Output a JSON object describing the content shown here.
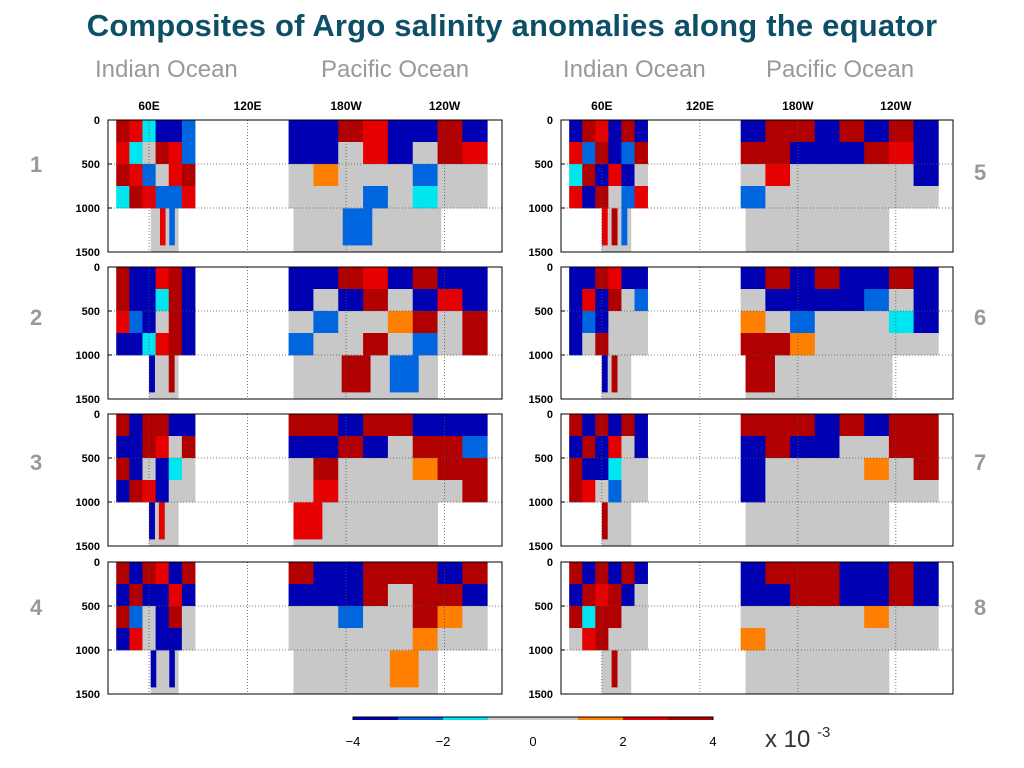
{
  "title": "Composites of Argo salinity anomalies along the equator",
  "ocean_labels": [
    "Indian Ocean",
    "Pacific Ocean",
    "Indian Ocean",
    "Pacific Ocean"
  ],
  "colorbar": {
    "ticks": [
      "−4",
      "−2",
      "0",
      "2",
      "4"
    ],
    "tick_values": [
      -4,
      -2,
      0,
      2,
      4
    ],
    "unit_base": "x 10",
    "unit_exp": "-3",
    "bins": [
      {
        "lo": -4,
        "hi": -3,
        "color": "#0000b3"
      },
      {
        "lo": -3,
        "hi": -2,
        "color": "#0066e0"
      },
      {
        "lo": -2,
        "hi": -1,
        "color": "#00e6f0"
      },
      {
        "lo": -1,
        "hi": 1,
        "color": "#c8c8c8"
      },
      {
        "lo": 1,
        "hi": 2,
        "color": "#ff8000"
      },
      {
        "lo": 2,
        "hi": 3,
        "color": "#e60000"
      },
      {
        "lo": 3,
        "hi": 4,
        "color": "#b00000"
      }
    ]
  },
  "chart_data": {
    "type": "heatmap",
    "x_ticks": [
      "60E",
      "120E",
      "180W",
      "120W"
    ],
    "x_tick_values": [
      60,
      120,
      180,
      240
    ],
    "xlim": [
      35,
      275
    ],
    "y_ticks": [
      "0",
      "500",
      "1000",
      "1500"
    ],
    "y_tick_values": [
      0,
      500,
      1000,
      1500
    ],
    "ylim": [
      0,
      1500
    ],
    "panels": [
      {
        "number": "1",
        "segments": [
          {
            "lon": [
              40,
              88
            ],
            "depth": 1000,
            "deep": {
              "lon": [
                61,
                78
              ],
              "depth": 1500
            },
            "pattern": [
              [
                4,
                3,
                -1,
                -3,
                -4,
                -2
              ],
              [
                3,
                -1,
                0,
                4,
                3,
                -2
              ],
              [
                4,
                3,
                -2,
                0,
                3,
                4
              ],
              [
                -1,
                4,
                3,
                -2,
                -2,
                3
              ]
            ]
          },
          {
            "lon": [
              145,
              266
            ],
            "depth": 1000,
            "deep": {
              "lon": [
                148,
                238
              ],
              "depth": 1500
            },
            "pattern": [
              [
                -4,
                -3,
                4,
                3,
                -4,
                -3,
                4,
                -4
              ],
              [
                -3,
                -4,
                0,
                3,
                -4,
                0,
                4,
                3
              ],
              [
                0,
                2,
                0,
                0,
                0,
                -2,
                0,
                0
              ],
              [
                0,
                0,
                0,
                -2,
                0,
                -1,
                0,
                0
              ]
            ]
          }
        ]
      },
      {
        "number": "2",
        "segments": [
          {
            "lon": [
              40,
              88
            ],
            "depth": 1000,
            "deep": {
              "lon": [
                60,
                78
              ],
              "depth": 1500
            },
            "pattern": [
              [
                4,
                -4,
                -4,
                3,
                4,
                -3
              ],
              [
                4,
                -3,
                -4,
                -1,
                4,
                -4
              ],
              [
                3,
                -2,
                -3,
                0,
                4,
                -3
              ],
              [
                -3,
                -4,
                -1,
                3,
                4,
                -4
              ]
            ]
          },
          {
            "lon": [
              145,
              266
            ],
            "depth": 1000,
            "deep": {
              "lon": [
                148,
                236
              ],
              "depth": 1500
            },
            "pattern": [
              [
                -4,
                -4,
                4,
                3,
                -4,
                4,
                -4,
                -3
              ],
              [
                -3,
                0,
                -4,
                4,
                0,
                -3,
                3,
                -4
              ],
              [
                0,
                -2,
                0,
                0,
                2,
                4,
                0,
                4
              ],
              [
                -2,
                0,
                0,
                4,
                0,
                -2,
                0,
                4
              ]
            ]
          }
        ]
      },
      {
        "number": "3",
        "segments": [
          {
            "lon": [
              40,
              88
            ],
            "depth": 1000,
            "deep": {
              "lon": [
                60,
                78
              ],
              "depth": 1500
            },
            "pattern": [
              [
                4,
                -3,
                4,
                4,
                -4,
                -3
              ],
              [
                -4,
                -4,
                4,
                3,
                0,
                4
              ],
              [
                4,
                -3,
                0,
                -4,
                -1,
                0
              ],
              [
                -3,
                4,
                3,
                -4,
                0,
                0
              ]
            ]
          },
          {
            "lon": [
              145,
              266
            ],
            "depth": 1000,
            "deep": {
              "lon": [
                148,
                236
              ],
              "depth": 1500
            },
            "pattern": [
              [
                4,
                4,
                -4,
                4,
                4,
                -4,
                -3,
                -4
              ],
              [
                -4,
                -3,
                4,
                -4,
                0,
                4,
                4,
                -2
              ],
              [
                0,
                4,
                0,
                0,
                0,
                2,
                4,
                4
              ],
              [
                0,
                3,
                0,
                0,
                0,
                0,
                0,
                4
              ]
            ]
          }
        ]
      },
      {
        "number": "4",
        "segments": [
          {
            "lon": [
              40,
              88
            ],
            "depth": 1000,
            "deep": {
              "lon": [
                61,
                78
              ],
              "depth": 1500
            },
            "pattern": [
              [
                4,
                -3,
                4,
                3,
                -4,
                4
              ],
              [
                -4,
                4,
                -3,
                -4,
                3,
                -3
              ],
              [
                4,
                -2,
                0,
                -4,
                4,
                0
              ],
              [
                -3,
                3,
                0,
                -3,
                -4,
                0
              ]
            ]
          },
          {
            "lon": [
              145,
              266
            ],
            "depth": 1000,
            "deep": {
              "lon": [
                148,
                236
              ],
              "depth": 1500
            },
            "pattern": [
              [
                4,
                -4,
                -3,
                4,
                4,
                4,
                -3,
                4
              ],
              [
                -4,
                -4,
                -3,
                4,
                0,
                4,
                4,
                -4
              ],
              [
                0,
                0,
                -2,
                0,
                0,
                4,
                2,
                0
              ],
              [
                0,
                0,
                0,
                0,
                0,
                2,
                0,
                0
              ]
            ]
          }
        ]
      },
      {
        "number": "5",
        "segments": [
          {
            "lon": [
              40,
              88
            ],
            "depth": 1000,
            "deep": {
              "lon": [
                60,
                78
              ],
              "depth": 1500
            },
            "pattern": [
              [
                -4,
                4,
                3,
                -3,
                4,
                -4
              ],
              [
                3,
                -2,
                4,
                -4,
                -2,
                4
              ],
              [
                -1,
                4,
                -4,
                3,
                -3,
                0
              ],
              [
                3,
                -4,
                4,
                0,
                -2,
                3
              ]
            ]
          },
          {
            "lon": [
              145,
              266
            ],
            "depth": 1000,
            "deep": {
              "lon": [
                148,
                236
              ],
              "depth": 1500
            },
            "pattern": [
              [
                -4,
                4,
                4,
                -4,
                4,
                -3,
                4,
                -4
              ],
              [
                4,
                4,
                -4,
                -3,
                -4,
                4,
                3,
                -4
              ],
              [
                0,
                3,
                0,
                0,
                0,
                0,
                0,
                -4
              ],
              [
                -2,
                0,
                0,
                0,
                0,
                0,
                0,
                0
              ]
            ]
          }
        ]
      },
      {
        "number": "6",
        "segments": [
          {
            "lon": [
              40,
              88
            ],
            "depth": 1000,
            "deep": {
              "lon": [
                60,
                78
              ],
              "depth": 1500
            },
            "pattern": [
              [
                -4,
                -4,
                4,
                3,
                -4,
                -3
              ],
              [
                -4,
                3,
                -3,
                4,
                0,
                -2
              ],
              [
                -4,
                -2,
                -4,
                0,
                0,
                0
              ],
              [
                -3,
                0,
                4,
                0,
                0,
                0
              ]
            ]
          },
          {
            "lon": [
              145,
              266
            ],
            "depth": 1000,
            "deep": {
              "lon": [
                148,
                238
              ],
              "depth": 1500
            },
            "pattern": [
              [
                -4,
                4,
                -3,
                4,
                -4,
                -3,
                4,
                -4
              ],
              [
                0,
                -4,
                -4,
                -4,
                -3,
                -2,
                0,
                -4
              ],
              [
                2,
                0,
                -2,
                0,
                0,
                0,
                -1,
                -4
              ],
              [
                4,
                4,
                2,
                0,
                0,
                0,
                0,
                0
              ]
            ]
          }
        ]
      },
      {
        "number": "7",
        "segments": [
          {
            "lon": [
              40,
              88
            ],
            "depth": 1000,
            "deep": {
              "lon": [
                60,
                78
              ],
              "depth": 1500
            },
            "pattern": [
              [
                4,
                -3,
                4,
                -4,
                4,
                -3
              ],
              [
                -4,
                4,
                -4,
                3,
                0,
                -4
              ],
              [
                4,
                -3,
                -4,
                -1,
                0,
                0
              ],
              [
                4,
                3,
                0,
                -2,
                0,
                0
              ]
            ]
          },
          {
            "lon": [
              145,
              266
            ],
            "depth": 1000,
            "deep": {
              "lon": [
                148,
                236
              ],
              "depth": 1500
            },
            "pattern": [
              [
                4,
                4,
                4,
                -4,
                4,
                -3,
                4,
                4
              ],
              [
                -4,
                4,
                -3,
                -4,
                0,
                0,
                4,
                4
              ],
              [
                -3,
                0,
                0,
                0,
                0,
                2,
                0,
                4
              ],
              [
                -3,
                0,
                0,
                0,
                0,
                0,
                0,
                0
              ]
            ]
          }
        ]
      },
      {
        "number": "8",
        "segments": [
          {
            "lon": [
              40,
              88
            ],
            "depth": 1000,
            "deep": {
              "lon": [
                60,
                78
              ],
              "depth": 1500
            },
            "pattern": [
              [
                4,
                -3,
                4,
                -4,
                4,
                -4
              ],
              [
                -4,
                4,
                3,
                4,
                -3,
                0
              ],
              [
                4,
                -1,
                4,
                4,
                0,
                0
              ],
              [
                0,
                3,
                4,
                0,
                0,
                0
              ]
            ]
          },
          {
            "lon": [
              145,
              266
            ],
            "depth": 1000,
            "deep": {
              "lon": [
                148,
                236
              ],
              "depth": 1500
            },
            "pattern": [
              [
                -4,
                4,
                4,
                4,
                -4,
                -4,
                4,
                -4
              ],
              [
                -4,
                -4,
                4,
                4,
                -3,
                -4,
                4,
                -4
              ],
              [
                0,
                0,
                0,
                0,
                0,
                2,
                0,
                0
              ],
              [
                2,
                0,
                0,
                0,
                0,
                0,
                0,
                0
              ]
            ]
          }
        ]
      }
    ]
  }
}
